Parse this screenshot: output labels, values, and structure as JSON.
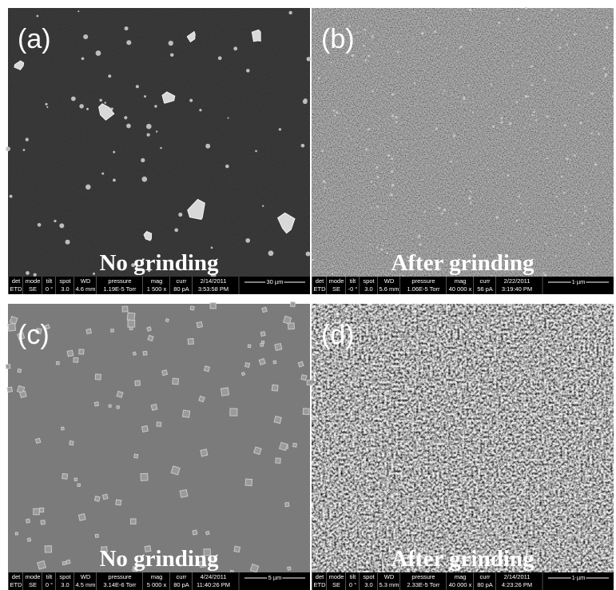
{
  "panels": [
    {
      "label": "(a)",
      "caption": "No grinding",
      "databar": {
        "headers": [
          "det",
          "mode",
          "tilt",
          "spot",
          "WD",
          "pressure",
          "mag",
          "curr",
          "2/14/2011"
        ],
        "values": [
          "ETD",
          "SE",
          "0 °",
          "3.0",
          "4.6 mm",
          "1.19E-5 Torr",
          "1 500 x",
          "80 pA",
          "3:53:58 PM"
        ],
        "scale": "30 µm"
      }
    },
    {
      "label": "(b)",
      "caption": "After grinding",
      "databar": {
        "headers": [
          "det",
          "mode",
          "tilt",
          "spot",
          "WD",
          "pressure",
          "mag",
          "curr",
          "2/22/2011"
        ],
        "values": [
          "ETD",
          "SE",
          "-0 °",
          "3.0",
          "5.6 mm",
          "1.06E-5 Torr",
          "40 000 x",
          "56 pA",
          "3:19:40 PM"
        ],
        "scale": "1 µm"
      }
    },
    {
      "label": "(c)",
      "caption": "No grinding",
      "databar": {
        "headers": [
          "det",
          "mode",
          "tilt",
          "spot",
          "WD",
          "pressure",
          "mag",
          "curr",
          "4/24/2011"
        ],
        "values": [
          "ETD",
          "SE",
          "0 °",
          "3.0",
          "4.5 mm",
          "3.14E-6 Torr",
          "5 000 x",
          "80 pA",
          "11:40:26 PM"
        ],
        "scale": "5 µm"
      }
    },
    {
      "label": "(d)",
      "caption": "After grinding",
      "databar": {
        "headers": [
          "det",
          "mode",
          "tilt",
          "spot",
          "WD",
          "pressure",
          "mag",
          "curr",
          "2/14/2011"
        ],
        "values": [
          "ETD",
          "SE",
          "0 °",
          "3.0",
          "5.3 mm",
          "2.33E-5 Torr",
          "40 000 x",
          "80 pA",
          "4:23:26 PM"
        ],
        "scale": "1 µm"
      }
    }
  ]
}
